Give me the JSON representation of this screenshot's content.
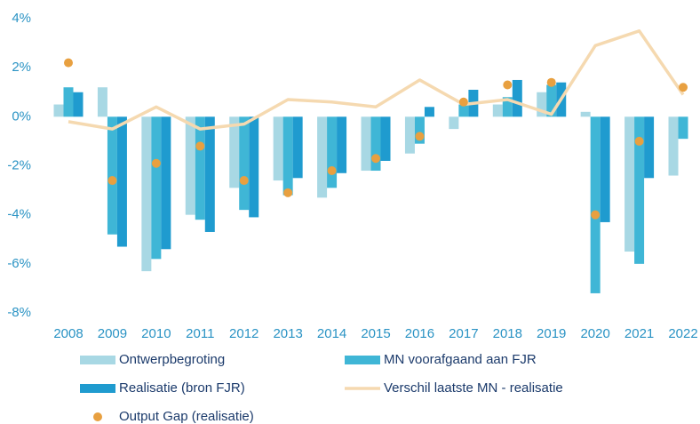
{
  "chart_data": {
    "type": "bar",
    "categories": [
      "2008",
      "2009",
      "2010",
      "2011",
      "2012",
      "2013",
      "2014",
      "2015",
      "2016",
      "2017",
      "2018",
      "2019",
      "2020",
      "2021",
      "2022"
    ],
    "ylim": [
      -8,
      4
    ],
    "yticks": [
      {
        "value": 4,
        "label": "4%"
      },
      {
        "value": 2,
        "label": "2%"
      },
      {
        "value": 0,
        "label": "0%"
      },
      {
        "value": -2,
        "label": "-2%"
      },
      {
        "value": -4,
        "label": "-4%"
      },
      {
        "value": -6,
        "label": "-6%"
      },
      {
        "value": -8,
        "label": "-8%"
      }
    ],
    "series": [
      {
        "name": "Ontwerpbegroting",
        "type": "bar",
        "color": "#a8d8e4",
        "values": [
          0.5,
          1.2,
          -6.3,
          -4.0,
          -2.9,
          -2.6,
          -3.3,
          -2.2,
          -1.5,
          -0.5,
          0.5,
          1.0,
          0.2,
          -5.5,
          -2.4
        ]
      },
      {
        "name": "MN voorafgaand aan FJR",
        "type": "bar",
        "color": "#3fb6d6",
        "values": [
          1.2,
          -4.8,
          -5.8,
          -4.2,
          -3.8,
          -3.2,
          -2.9,
          -2.2,
          -1.1,
          0.5,
          0.8,
          1.3,
          -7.2,
          -6.0,
          -0.9
        ]
      },
      {
        "name": "Realisatie (bron FJR)",
        "type": "bar",
        "color": "#1f9bcf",
        "values": [
          1.0,
          -5.3,
          -5.4,
          -4.7,
          -4.1,
          -2.5,
          -2.3,
          -1.8,
          0.4,
          1.1,
          1.5,
          1.4,
          -4.3,
          -2.5,
          null
        ]
      },
      {
        "name": "Verschil laatste MN - realisatie",
        "type": "line",
        "color": "#f5d9b0",
        "values": [
          -0.2,
          -0.5,
          0.4,
          -0.5,
          -0.3,
          0.7,
          0.6,
          0.4,
          1.5,
          0.5,
          0.7,
          0.1,
          2.9,
          3.5,
          0.9
        ]
      },
      {
        "name": "Output Gap (realisatie)",
        "type": "scatter",
        "color": "#e8a040",
        "values": [
          2.2,
          -2.6,
          -1.9,
          -1.2,
          -2.6,
          -3.1,
          -2.2,
          -1.7,
          -0.8,
          0.6,
          1.3,
          1.4,
          -4.0,
          -1.0,
          1.2
        ]
      }
    ]
  }
}
